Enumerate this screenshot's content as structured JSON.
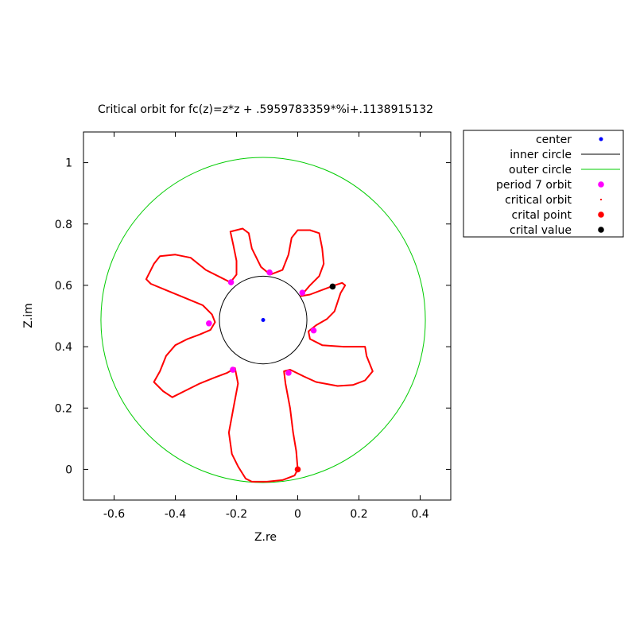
{
  "chart_data": {
    "type": "scatter",
    "title": "Critical orbit for fc(z)=z*z + .5959783359*%i+.1138915132",
    "xlabel": "Z.re",
    "ylabel": "Z.im",
    "xlim": [
      -0.7,
      0.5
    ],
    "ylim": [
      -0.1,
      1.1
    ],
    "xticks": [
      -0.6,
      -0.4,
      -0.2,
      0,
      0.2,
      0.4
    ],
    "xtick_labels": [
      "-0.6",
      "-0.4",
      "-0.2",
      "0",
      "0.2",
      "0.4"
    ],
    "yticks": [
      0,
      0.2,
      0.4,
      0.6,
      0.8,
      1
    ],
    "ytick_labels": [
      "0",
      "0.2",
      "0.4",
      "0.6",
      "0.8",
      "1"
    ],
    "grid": false,
    "legend_position": "outside-right-top",
    "series": [
      {
        "name": "center",
        "kind": "points",
        "color": "#0000ff",
        "points": [
          [
            -0.113,
            0.487
          ]
        ]
      },
      {
        "name": "inner circle",
        "kind": "circle",
        "color": "#000000",
        "center": [
          -0.113,
          0.487
        ],
        "radius": 0.143
      },
      {
        "name": "outer circle",
        "kind": "circle",
        "color": "#00cc00",
        "center": [
          -0.113,
          0.487
        ],
        "radius": 0.53
      },
      {
        "name": "period 7 orbit",
        "kind": "points",
        "color": "#ff00ff",
        "points": [
          [
            -0.092,
            0.642
          ],
          [
            0.015,
            0.576
          ],
          [
            0.052,
            0.453
          ],
          [
            -0.03,
            0.315
          ],
          [
            -0.212,
            0.325
          ],
          [
            -0.29,
            0.476
          ],
          [
            -0.218,
            0.61
          ]
        ]
      },
      {
        "name": "critical orbit",
        "kind": "path",
        "color": "#ff0000",
        "points": [
          [
            0,
            0
          ],
          [
            -0.005,
            0.06
          ],
          [
            -0.015,
            0.12
          ],
          [
            -0.025,
            0.2
          ],
          [
            -0.04,
            0.28
          ],
          [
            -0.045,
            0.32
          ],
          [
            -0.025,
            0.325
          ],
          [
            0.02,
            0.303
          ],
          [
            0.06,
            0.285
          ],
          [
            0.13,
            0.272
          ],
          [
            0.18,
            0.275
          ],
          [
            0.22,
            0.29
          ],
          [
            0.245,
            0.32
          ],
          [
            0.225,
            0.37
          ],
          [
            0.22,
            0.4
          ],
          [
            0.15,
            0.4
          ],
          [
            0.08,
            0.405
          ],
          [
            0.04,
            0.425
          ],
          [
            0.035,
            0.45
          ],
          [
            0.06,
            0.47
          ],
          [
            0.095,
            0.49
          ],
          [
            0.12,
            0.515
          ],
          [
            0.13,
            0.545
          ],
          [
            0.14,
            0.575
          ],
          [
            0.155,
            0.6
          ],
          [
            0.145,
            0.608
          ],
          [
            0.12,
            0.6
          ],
          [
            0.08,
            0.585
          ],
          [
            0.04,
            0.57
          ],
          [
            0.01,
            0.565
          ],
          [
            0.04,
            0.6
          ],
          [
            0.07,
            0.63
          ],
          [
            0.085,
            0.67
          ],
          [
            0.08,
            0.72
          ],
          [
            0.07,
            0.77
          ],
          [
            0.04,
            0.78
          ],
          [
            0,
            0.78
          ],
          [
            -0.02,
            0.755
          ],
          [
            -0.03,
            0.7
          ],
          [
            -0.05,
            0.65
          ],
          [
            -0.09,
            0.635
          ],
          [
            -0.12,
            0.66
          ],
          [
            -0.15,
            0.72
          ],
          [
            -0.16,
            0.77
          ],
          [
            -0.18,
            0.785
          ],
          [
            -0.22,
            0.775
          ],
          [
            -0.21,
            0.73
          ],
          [
            -0.2,
            0.68
          ],
          [
            -0.2,
            0.635
          ],
          [
            -0.22,
            0.61
          ],
          [
            -0.25,
            0.625
          ],
          [
            -0.3,
            0.65
          ],
          [
            -0.35,
            0.69
          ],
          [
            -0.4,
            0.7
          ],
          [
            -0.45,
            0.695
          ],
          [
            -0.47,
            0.67
          ],
          [
            -0.495,
            0.62
          ],
          [
            -0.48,
            0.605
          ],
          [
            -0.42,
            0.58
          ],
          [
            -0.37,
            0.56
          ],
          [
            -0.31,
            0.535
          ],
          [
            -0.28,
            0.505
          ],
          [
            -0.27,
            0.48
          ],
          [
            -0.285,
            0.455
          ],
          [
            -0.32,
            0.44
          ],
          [
            -0.36,
            0.425
          ],
          [
            -0.4,
            0.405
          ],
          [
            -0.43,
            0.37
          ],
          [
            -0.45,
            0.32
          ],
          [
            -0.47,
            0.285
          ],
          [
            -0.44,
            0.255
          ],
          [
            -0.41,
            0.235
          ],
          [
            -0.37,
            0.255
          ],
          [
            -0.32,
            0.28
          ],
          [
            -0.27,
            0.3
          ],
          [
            -0.23,
            0.315
          ],
          [
            -0.205,
            0.33
          ],
          [
            -0.195,
            0.28
          ],
          [
            -0.21,
            0.2
          ],
          [
            -0.225,
            0.12
          ],
          [
            -0.215,
            0.05
          ],
          [
            -0.195,
            0.01
          ],
          [
            -0.17,
            -0.03
          ],
          [
            -0.15,
            -0.04
          ],
          [
            -0.1,
            -0.04
          ],
          [
            -0.05,
            -0.035
          ],
          [
            -0.01,
            -0.02
          ],
          [
            0,
            0
          ]
        ]
      },
      {
        "name": "crital point",
        "kind": "points",
        "color": "#ff0000",
        "points": [
          [
            0,
            0
          ]
        ]
      },
      {
        "name": "crital value",
        "kind": "points",
        "color": "#000000",
        "points": [
          [
            0.114,
            0.596
          ]
        ]
      }
    ]
  }
}
